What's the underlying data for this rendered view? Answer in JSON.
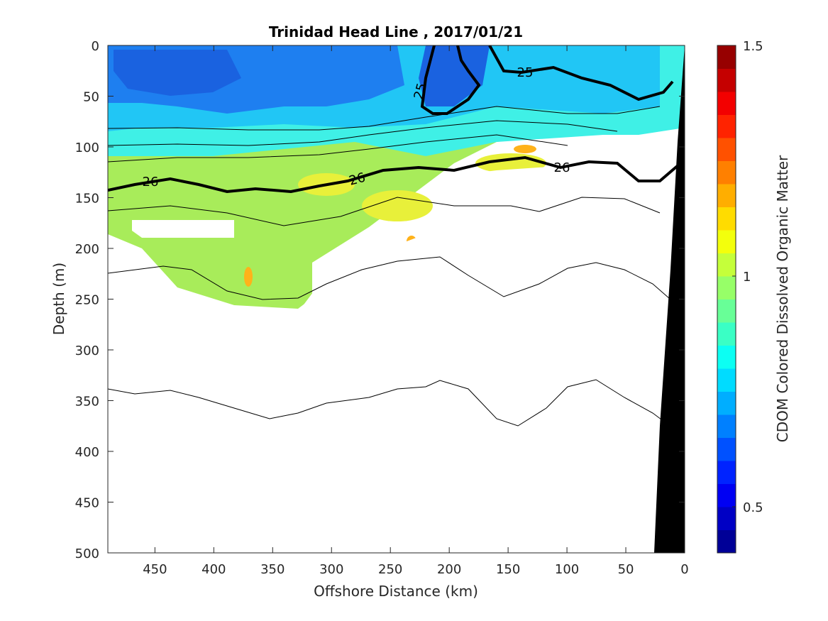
{
  "chart_data": {
    "type": "heatmap",
    "title": "Trinidad Head Line , 2017/01/21",
    "xlabel": "Offshore Distance (km)",
    "ylabel": "Depth (m)",
    "xlim": [
      490,
      0
    ],
    "ylim": [
      0,
      500
    ],
    "x_reversed": true,
    "y_reversed": true,
    "x_ticks": [
      "450",
      "400",
      "350",
      "300",
      "250",
      "200",
      "150",
      "100",
      "50",
      "0"
    ],
    "y_ticks": [
      "0",
      "50",
      "100",
      "150",
      "200",
      "250",
      "300",
      "350",
      "400",
      "450",
      "500"
    ],
    "colorbar": {
      "label": "CDOM Colored Dissolved Organic Matter",
      "range": [
        0.4,
        1.5
      ],
      "tick_labels": [
        "0.5",
        "1",
        "1.5"
      ],
      "colormap": "jet"
    },
    "contour_labels": [
      "25",
      "25",
      "26",
      "26",
      "26"
    ],
    "field_description": {
      "surface_layer_0_80m_offshore": 0.7,
      "mid_layer_100_250m": 1.0,
      "local_maxima_near_100m_at_150km": 1.25
    },
    "bathymetry": "black wedge near 0-25 km offshore",
    "isopycnal_depths": {
      "x": [
        490,
        450,
        400,
        350,
        300,
        250,
        200,
        150,
        100,
        50,
        20
      ],
      "sigma_25_5": [
        82,
        80,
        82,
        83,
        84,
        82,
        75,
        70,
        62,
        68,
        75
      ],
      "sigma_26": [
        143,
        133,
        140,
        143,
        145,
        128,
        124,
        110,
        120,
        115,
        135
      ],
      "sigma_26_2": [
        162,
        158,
        160,
        168,
        175,
        160,
        155,
        160,
        150,
        145,
        155
      ],
      "sigma_26_5": [
        228,
        222,
        220,
        248,
        240,
        222,
        245,
        228,
        210,
        220,
        240
      ],
      "sigma_27": [
        340,
        343,
        355,
        368,
        355,
        340,
        330,
        375,
        330,
        335,
        360
      ]
    }
  }
}
